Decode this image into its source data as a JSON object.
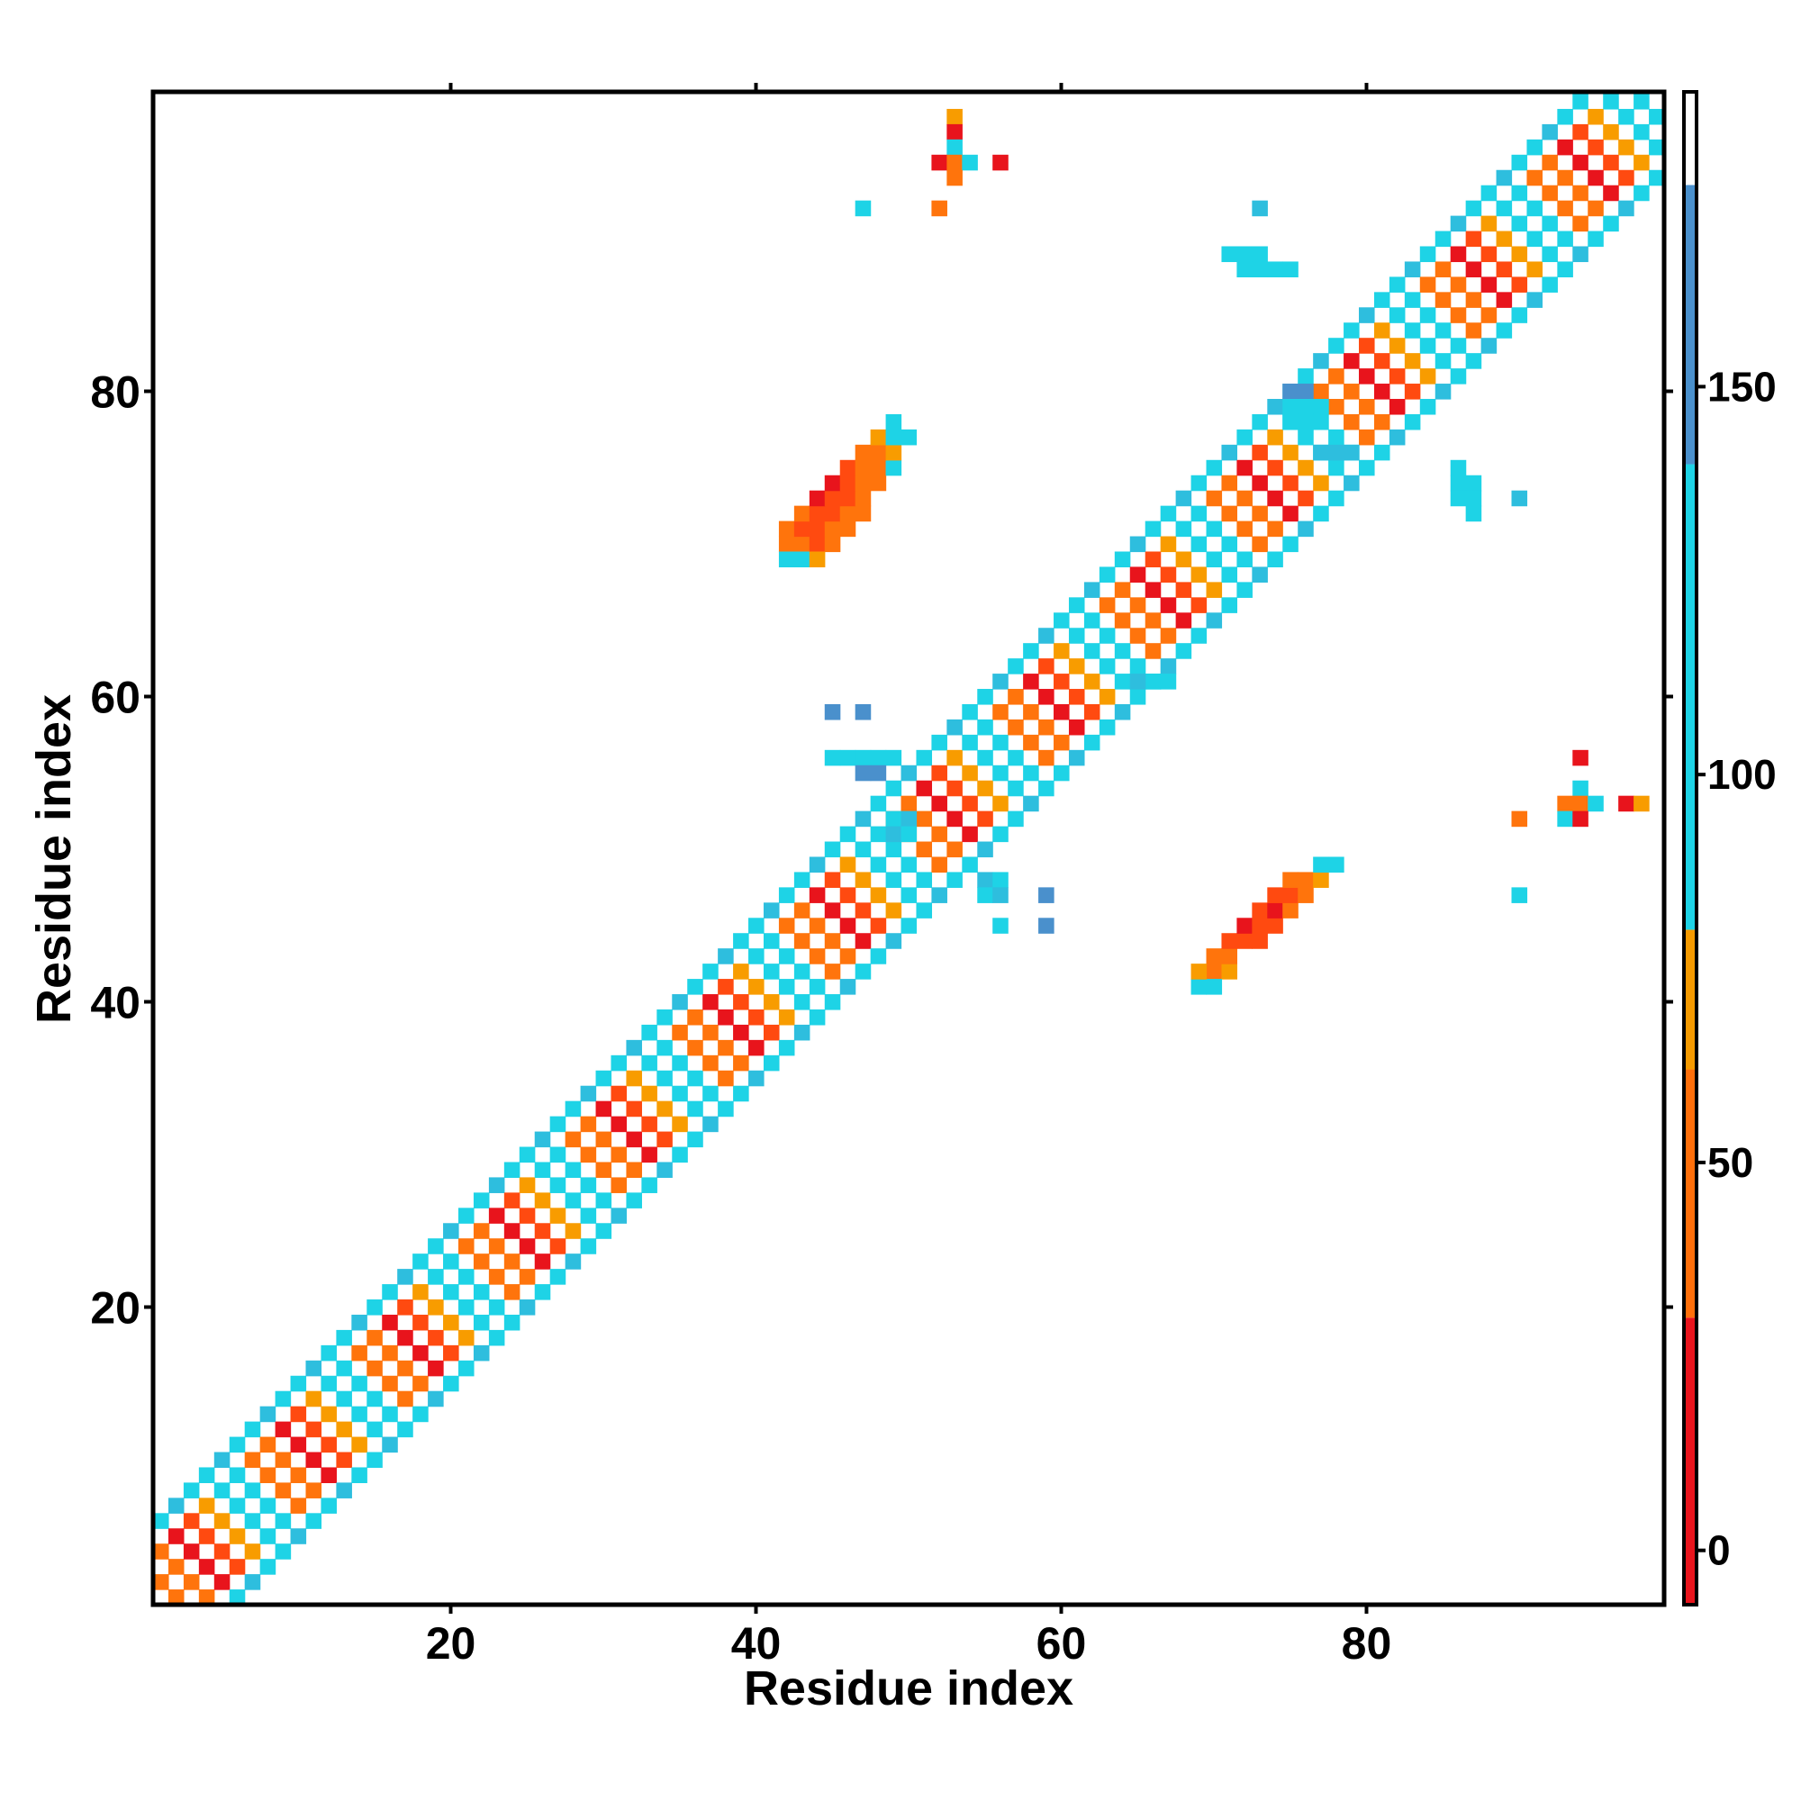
{
  "chart_data": {
    "type": "heatmap",
    "title": "",
    "xlabel": "Residue index",
    "ylabel": "Residue index",
    "xlim": [
      1,
      99
    ],
    "ylim": [
      1,
      99
    ],
    "x_ticks": [
      20,
      40,
      60,
      80
    ],
    "y_ticks": [
      20,
      40,
      60,
      80
    ],
    "x_tick_labels": [
      "20",
      "40",
      "60",
      "80"
    ],
    "y_tick_labels": [
      "20",
      "40",
      "60",
      "80"
    ],
    "colorbar": {
      "range": [
        -7,
        188
      ],
      "ticks": [
        0,
        50,
        100,
        150
      ],
      "tick_labels": [
        "0",
        "50",
        "100",
        "150"
      ],
      "stops": [
        {
          "from": -7,
          "to": 30,
          "color": "#e8141c"
        },
        {
          "from": 30,
          "to": 62,
          "color": "#ff6f0a"
        },
        {
          "from": 62,
          "to": 80,
          "color": "#f59a00"
        },
        {
          "from": 80,
          "to": 140,
          "color": "#1ed3e6"
        },
        {
          "from": 140,
          "to": 176,
          "color": "#4a90cc"
        },
        {
          "from": 176,
          "to": 188,
          "color": "#ffffff"
        }
      ]
    },
    "value_colors": {
      "0": "#e8141c",
      "1": "#ff4a10",
      "2": "#ff740c",
      "3": "#f89c00",
      "4": "#1ed3e6",
      "5": "#2ebede",
      "6": "#4a90cc"
    },
    "grid": false,
    "diagonal_band": {
      "description_values": "cells (i,j) with 1<=|i-j|<=6 near the diagonal; parity pattern alternating red/orange/cyan",
      "max_offset": 6
    },
    "contacts": [
      [
        42,
        70,
        2
      ],
      [
        43,
        70,
        2
      ],
      [
        44,
        70,
        1
      ],
      [
        45,
        70,
        2
      ],
      [
        42,
        71,
        2
      ],
      [
        43,
        71,
        1
      ],
      [
        44,
        71,
        1
      ],
      [
        45,
        71,
        2
      ],
      [
        46,
        71,
        2
      ],
      [
        43,
        72,
        2
      ],
      [
        44,
        72,
        1
      ],
      [
        45,
        72,
        1
      ],
      [
        46,
        72,
        2
      ],
      [
        47,
        72,
        2
      ],
      [
        44,
        73,
        0
      ],
      [
        45,
        73,
        1
      ],
      [
        46,
        73,
        1
      ],
      [
        47,
        73,
        2
      ],
      [
        45,
        74,
        0
      ],
      [
        46,
        74,
        1
      ],
      [
        47,
        74,
        2
      ],
      [
        48,
        74,
        2
      ],
      [
        46,
        75,
        1
      ],
      [
        47,
        75,
        2
      ],
      [
        48,
        75,
        2
      ],
      [
        49,
        75,
        4
      ],
      [
        47,
        76,
        2
      ],
      [
        48,
        76,
        2
      ],
      [
        49,
        76,
        3
      ],
      [
        48,
        77,
        3
      ],
      [
        49,
        77,
        4
      ],
      [
        50,
        77,
        4
      ],
      [
        49,
        78,
        4
      ],
      [
        42,
        69,
        4
      ],
      [
        43,
        69,
        4
      ],
      [
        44,
        69,
        3
      ],
      [
        70,
        42,
        2
      ],
      [
        70,
        43,
        2
      ],
      [
        71,
        42,
        3
      ],
      [
        71,
        43,
        2
      ],
      [
        71,
        44,
        1
      ],
      [
        72,
        44,
        1
      ],
      [
        72,
        45,
        0
      ],
      [
        73,
        44,
        1
      ],
      [
        73,
        45,
        1
      ],
      [
        73,
        46,
        1
      ],
      [
        74,
        45,
        1
      ],
      [
        74,
        46,
        0
      ],
      [
        74,
        47,
        1
      ],
      [
        75,
        46,
        2
      ],
      [
        75,
        47,
        1
      ],
      [
        75,
        48,
        2
      ],
      [
        76,
        47,
        2
      ],
      [
        76,
        48,
        2
      ],
      [
        77,
        48,
        3
      ],
      [
        77,
        49,
        4
      ],
      [
        78,
        49,
        4
      ],
      [
        69,
        41,
        4
      ],
      [
        70,
        41,
        4
      ],
      [
        69,
        42,
        3
      ],
      [
        53,
        98,
        3
      ],
      [
        53,
        97,
        0
      ],
      [
        53,
        96,
        4
      ],
      [
        52,
        95,
        0
      ],
      [
        53,
        95,
        2
      ],
      [
        54,
        95,
        4
      ],
      [
        56,
        95,
        0
      ],
      [
        53,
        94,
        2
      ],
      [
        47,
        92,
        4
      ],
      [
        52,
        92,
        2
      ],
      [
        73,
        92,
        5
      ],
      [
        71,
        89,
        4
      ],
      [
        72,
        89,
        4
      ],
      [
        73,
        89,
        4
      ],
      [
        72,
        88,
        4
      ],
      [
        73,
        88,
        4
      ],
      [
        74,
        88,
        4
      ],
      [
        75,
        88,
        4
      ],
      [
        45,
        59,
        6
      ],
      [
        47,
        59,
        6
      ],
      [
        45,
        56,
        4
      ],
      [
        46,
        56,
        4
      ],
      [
        47,
        56,
        4
      ],
      [
        48,
        56,
        4
      ],
      [
        49,
        56,
        4
      ],
      [
        47,
        55,
        6
      ],
      [
        48,
        55,
        6
      ],
      [
        49,
        52,
        4
      ],
      [
        50,
        52,
        5
      ],
      [
        49,
        51,
        5
      ],
      [
        50,
        51,
        4
      ],
      [
        55,
        48,
        5
      ],
      [
        56,
        48,
        4
      ],
      [
        55,
        47,
        4
      ],
      [
        56,
        47,
        5
      ],
      [
        59,
        47,
        6
      ],
      [
        56,
        45,
        4
      ],
      [
        59,
        45,
        6
      ],
      [
        66,
        61,
        4
      ],
      [
        67,
        61,
        4
      ],
      [
        65,
        61,
        5
      ],
      [
        86,
        75,
        4
      ],
      [
        86,
        74,
        4
      ],
      [
        87,
        74,
        4
      ],
      [
        86,
        73,
        4
      ],
      [
        87,
        73,
        4
      ],
      [
        87,
        72,
        4
      ],
      [
        90,
        73,
        5
      ],
      [
        75,
        80,
        6
      ],
      [
        76,
        80,
        6
      ],
      [
        75,
        79,
        4
      ],
      [
        76,
        79,
        4
      ],
      [
        77,
        79,
        4
      ],
      [
        75,
        78,
        4
      ],
      [
        76,
        78,
        4
      ],
      [
        77,
        76,
        5
      ],
      [
        78,
        76,
        5
      ],
      [
        79,
        76,
        5
      ],
      [
        94,
        56,
        0
      ],
      [
        94,
        54,
        4
      ],
      [
        93,
        53,
        2
      ],
      [
        94,
        53,
        2
      ],
      [
        95,
        53,
        4
      ],
      [
        97,
        53,
        0
      ],
      [
        98,
        53,
        3
      ],
      [
        90,
        52,
        2
      ],
      [
        93,
        52,
        4
      ],
      [
        94,
        52,
        0
      ],
      [
        90,
        47,
        4
      ]
    ]
  }
}
